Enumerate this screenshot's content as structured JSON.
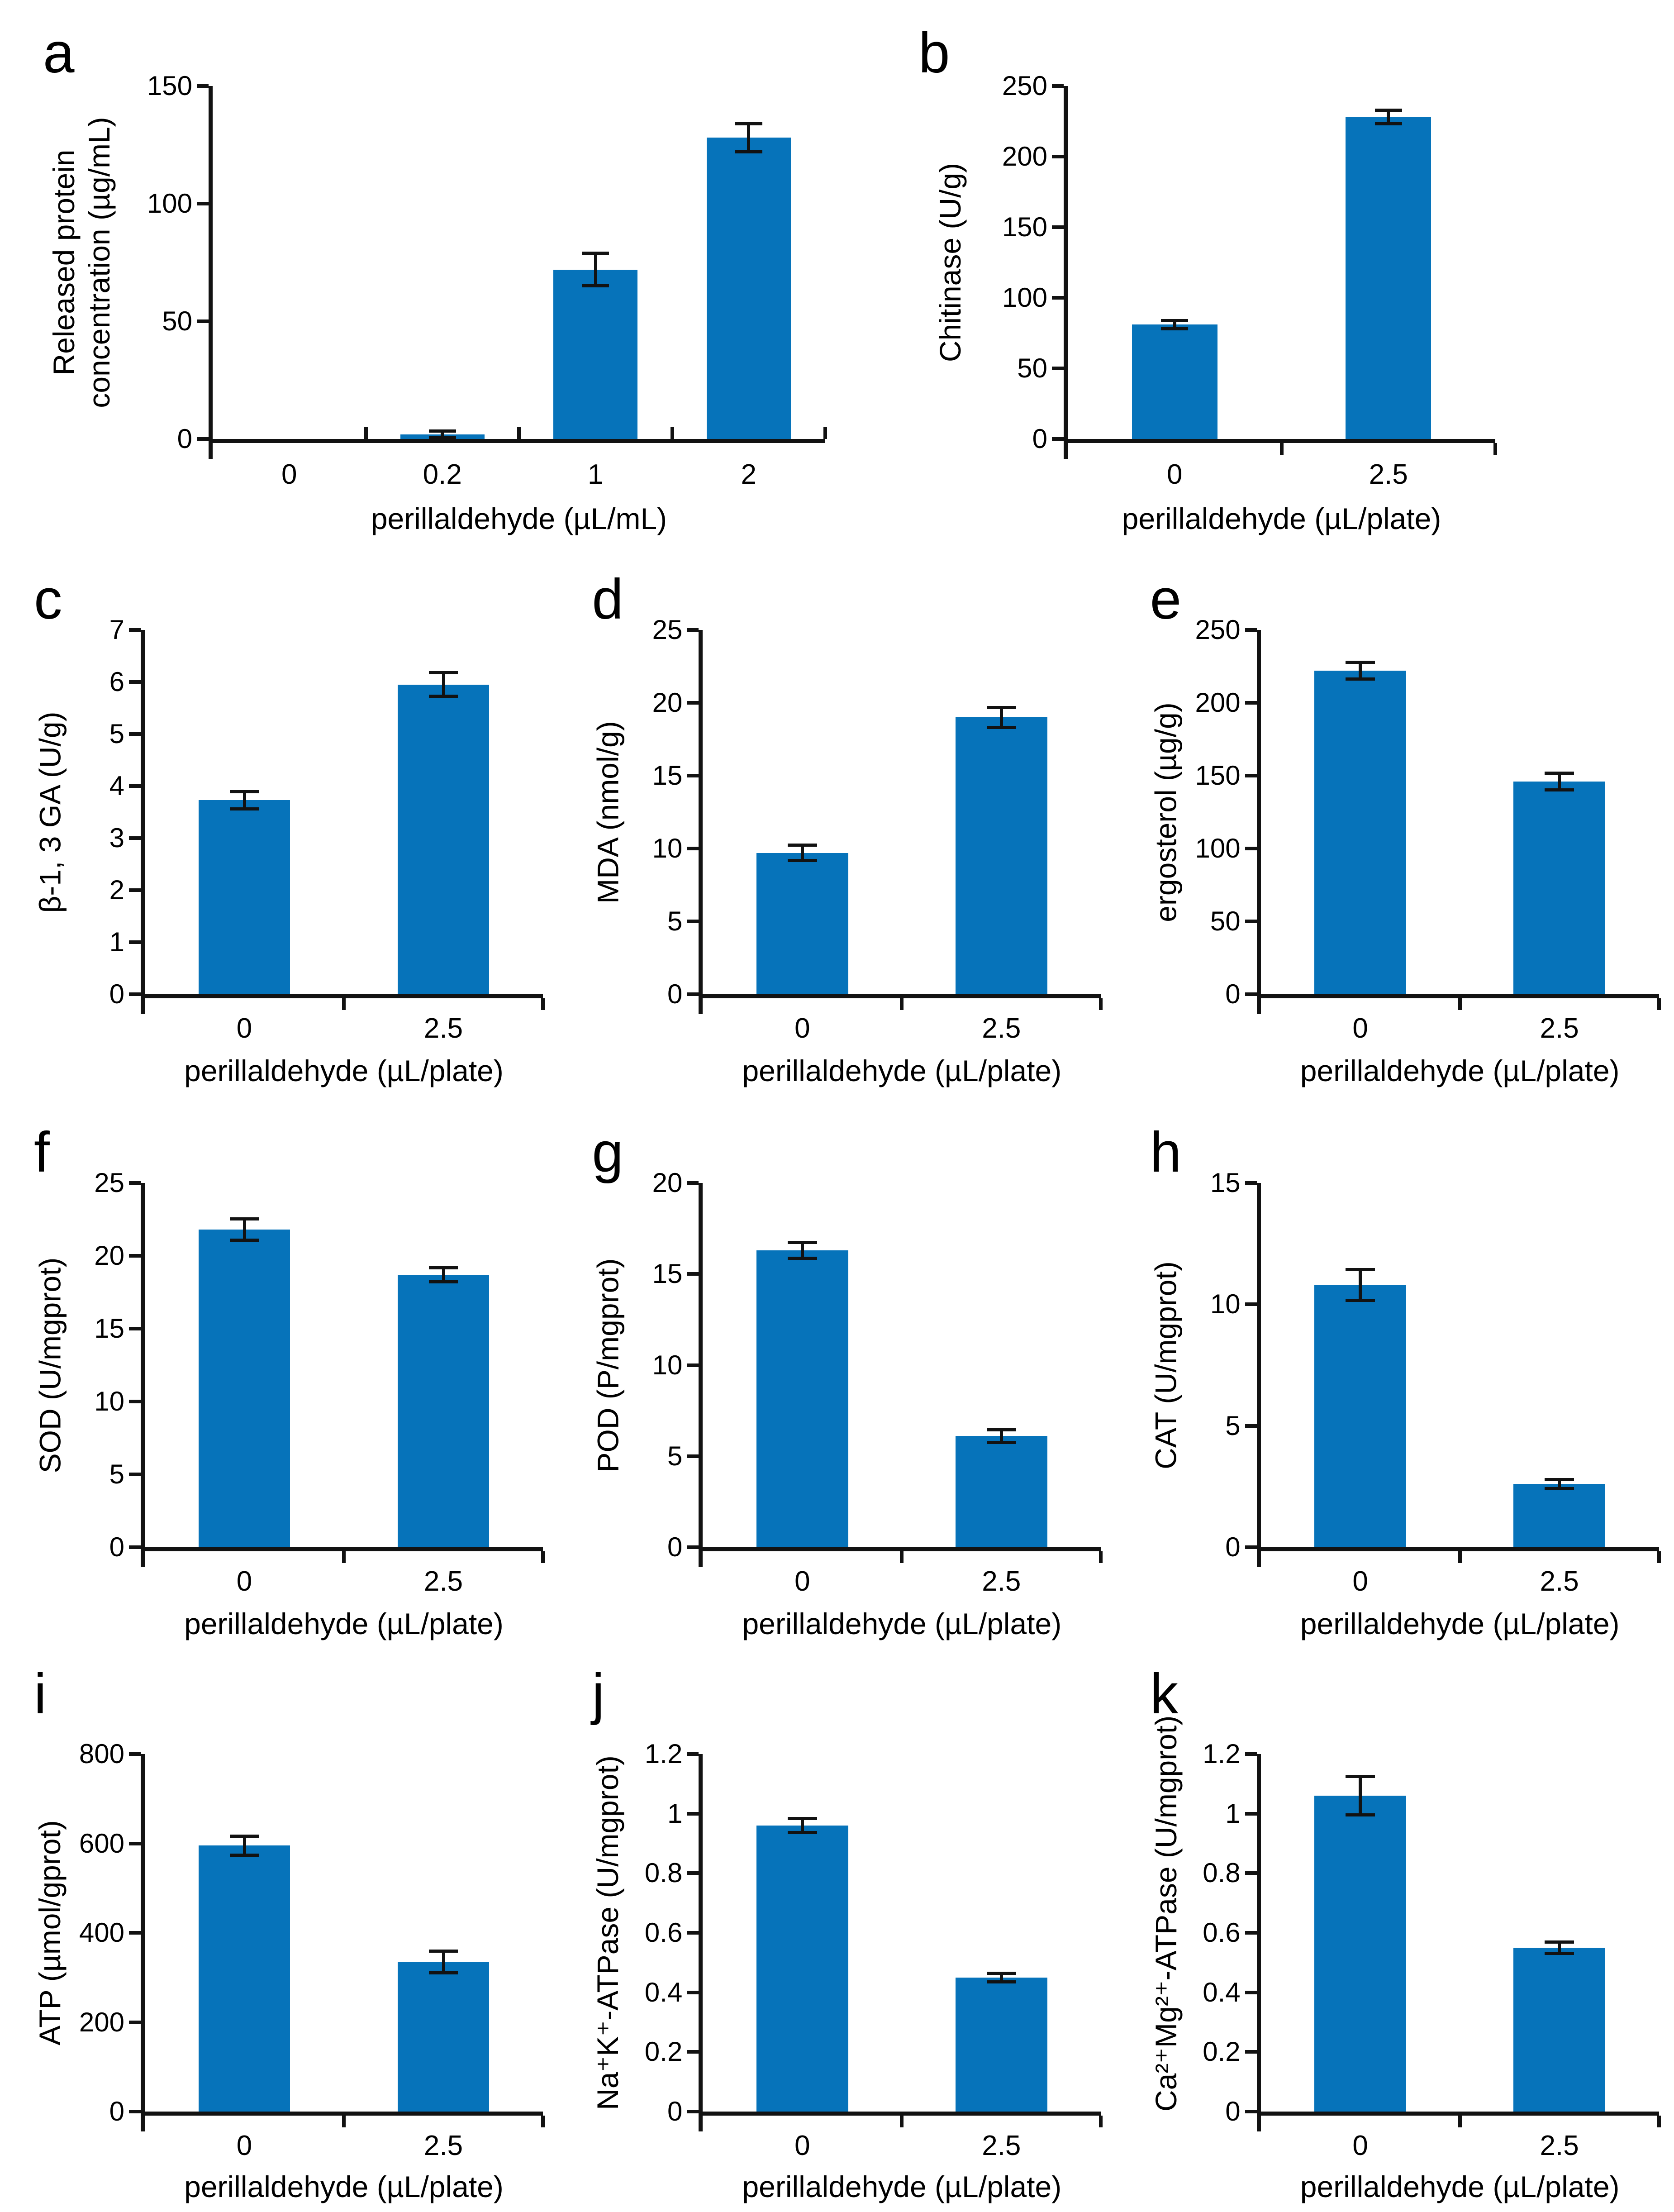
{
  "figure": {
    "background": "#ffffff",
    "bar_color": "#0673BA",
    "axis_color": "#121212",
    "text_color": "#000000"
  },
  "chart_data": [
    {
      "type": "bar",
      "letter": "a",
      "ylabel_lines": [
        "Released protein",
        "concentration (µg/mL)"
      ],
      "xlabel": "perillaldehyde (µL/mL)",
      "categories": [
        "0",
        "0.2",
        "1",
        "2"
      ],
      "values": [
        0,
        2,
        72,
        128
      ],
      "errors": [
        0,
        1.5,
        7,
        6
      ],
      "ylim": [
        0,
        150
      ],
      "yticks": [
        0,
        50,
        100,
        150
      ],
      "ytick_labels": [
        "0",
        "50",
        "100",
        "150"
      ],
      "grid": false,
      "legend": "none"
    },
    {
      "type": "bar",
      "letter": "b",
      "ylabel_lines": [
        "Chitinase (U/g)"
      ],
      "xlabel": "perillaldehyde (µL/plate)",
      "categories": [
        "0",
        "2.5"
      ],
      "values": [
        81,
        228
      ],
      "errors": [
        3,
        5
      ],
      "ylim": [
        0,
        250
      ],
      "yticks": [
        0,
        50,
        100,
        150,
        200,
        250
      ],
      "ytick_labels": [
        "0",
        "50",
        "100",
        "150",
        "200",
        "250"
      ],
      "grid": false,
      "legend": "none"
    },
    {
      "type": "bar",
      "letter": "c",
      "ylabel_lines": [
        "β-1, 3 GA (U/g)"
      ],
      "xlabel": "perillaldehyde (µL/plate)",
      "categories": [
        "0",
        "2.5"
      ],
      "values": [
        3.73,
        5.95
      ],
      "errors": [
        0.17,
        0.23
      ],
      "ylim": [
        0,
        7
      ],
      "yticks": [
        0,
        1,
        2,
        3,
        4,
        5,
        6,
        7
      ],
      "ytick_labels": [
        "0",
        "1",
        "2",
        "3",
        "4",
        "5",
        "6",
        "7"
      ],
      "grid": false,
      "legend": "none"
    },
    {
      "type": "bar",
      "letter": "d",
      "ylabel_lines": [
        "MDA (nmol/g)"
      ],
      "xlabel": "perillaldehyde (µL/plate)",
      "categories": [
        "0",
        "2.5"
      ],
      "values": [
        9.7,
        19
      ],
      "errors": [
        0.55,
        0.7
      ],
      "ylim": [
        0,
        25
      ],
      "yticks": [
        0,
        5,
        10,
        15,
        20,
        25
      ],
      "ytick_labels": [
        "0",
        "5",
        "10",
        "15",
        "20",
        "25"
      ],
      "grid": false,
      "legend": "none"
    },
    {
      "type": "bar",
      "letter": "e",
      "ylabel_lines": [
        "ergosterol (µg/g)"
      ],
      "xlabel": "perillaldehyde (µL/plate)",
      "categories": [
        "0",
        "2.5"
      ],
      "values": [
        222,
        146
      ],
      "errors": [
        6,
        6
      ],
      "ylim": [
        0,
        250
      ],
      "yticks": [
        0,
        50,
        100,
        150,
        200,
        250
      ],
      "ytick_labels": [
        "0",
        "50",
        "100",
        "150",
        "200",
        "250"
      ],
      "grid": false,
      "legend": "none"
    },
    {
      "type": "bar",
      "letter": "f",
      "ylabel_lines": [
        "SOD (U/mgprot)"
      ],
      "xlabel": "perillaldehyde (µL/plate)",
      "categories": [
        "0",
        "2.5"
      ],
      "values": [
        21.8,
        18.7
      ],
      "errors": [
        0.75,
        0.5
      ],
      "ylim": [
        0,
        25
      ],
      "yticks": [
        0,
        5,
        10,
        15,
        20,
        25
      ],
      "ytick_labels": [
        "0",
        "5",
        "10",
        "15",
        "20",
        "25"
      ],
      "grid": false,
      "legend": "none"
    },
    {
      "type": "bar",
      "letter": "g",
      "ylabel_lines": [
        "POD (P/mgprot)"
      ],
      "xlabel": "perillaldehyde (µL/plate)",
      "categories": [
        "0",
        "2.5"
      ],
      "values": [
        16.3,
        6.1
      ],
      "errors": [
        0.45,
        0.35
      ],
      "ylim": [
        0,
        20
      ],
      "yticks": [
        0,
        5,
        10,
        15,
        20
      ],
      "ytick_labels": [
        "0",
        "5",
        "10",
        "15",
        "20"
      ],
      "grid": false,
      "legend": "none"
    },
    {
      "type": "bar",
      "letter": "h",
      "ylabel_lines": [
        "CAT (U/mgprot)"
      ],
      "xlabel": "perillaldehyde (µL/plate)",
      "categories": [
        "0",
        "2.5"
      ],
      "values": [
        10.8,
        2.6
      ],
      "errors": [
        0.65,
        0.2
      ],
      "ylim": [
        0,
        15
      ],
      "yticks": [
        0,
        5,
        10,
        15
      ],
      "ytick_labels": [
        "0",
        "5",
        "10",
        "15"
      ],
      "grid": false,
      "legend": "none"
    },
    {
      "type": "bar",
      "letter": "i",
      "ylabel_lines": [
        "ATP (µmol/gprot)"
      ],
      "xlabel": "perillaldehyde (µL/plate)",
      "categories": [
        "0",
        "2.5"
      ],
      "values": [
        595,
        335
      ],
      "errors": [
        22,
        25
      ],
      "ylim": [
        0,
        800
      ],
      "yticks": [
        0,
        200,
        400,
        600,
        800
      ],
      "ytick_labels": [
        "0",
        "200",
        "400",
        "600",
        "800"
      ],
      "grid": false,
      "legend": "none"
    },
    {
      "type": "bar",
      "letter": "j",
      "ylabel_lines": [
        "Na⁺K⁺-ATPase (U/mgprot)"
      ],
      "xlabel": "perillaldehyde (µL/plate)",
      "categories": [
        "0",
        "2.5"
      ],
      "values": [
        0.96,
        0.45
      ],
      "errors": [
        0.025,
        0.015
      ],
      "ylim": [
        0,
        1.2
      ],
      "yticks": [
        0,
        0.2,
        0.4,
        0.6,
        0.8,
        1,
        1.2
      ],
      "ytick_labels": [
        "0",
        "0.2",
        "0.4",
        "0.6",
        "0.8",
        "1",
        "1.2"
      ],
      "grid": false,
      "legend": "none"
    },
    {
      "type": "bar",
      "letter": "k",
      "ylabel_lines": [
        "Ca²⁺Mg²⁺-ATPase (U/mgprot)"
      ],
      "xlabel": "perillaldehyde (µL/plate)",
      "categories": [
        "0",
        "2.5"
      ],
      "values": [
        1.06,
        0.55
      ],
      "errors": [
        0.065,
        0.02
      ],
      "ylim": [
        0,
        1.2
      ],
      "yticks": [
        0,
        0.2,
        0.4,
        0.6,
        0.8,
        1,
        1.2
      ],
      "ytick_labels": [
        "0",
        "0.2",
        "0.4",
        "0.6",
        "0.8",
        "1",
        "1.2"
      ],
      "grid": false,
      "legend": "none"
    }
  ]
}
